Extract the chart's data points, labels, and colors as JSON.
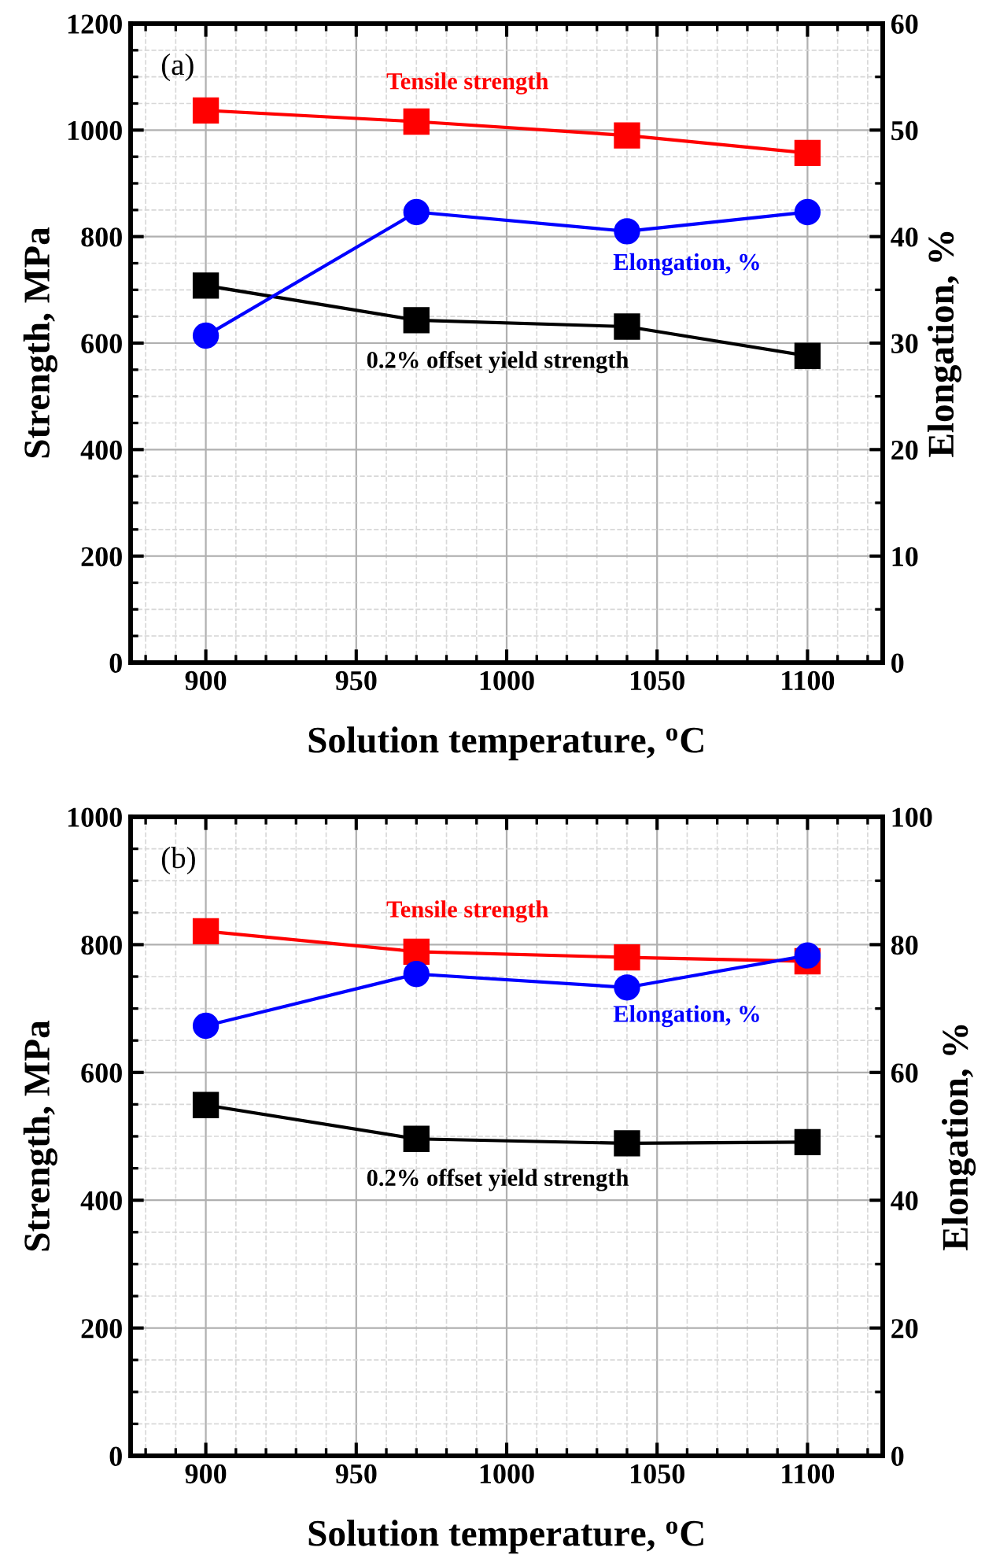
{
  "chart_data": [
    {
      "type": "line",
      "x": [
        900,
        970,
        1040,
        1100
      ],
      "xlabel": "Solution temperature, $^{o}$C",
      "ylabel": "Strength, MPa",
      "y2label": "Elongation, %",
      "annotations": [
        "(a)"
      ],
      "xlim": [
        875,
        1125
      ],
      "xticks": [
        900,
        950,
        1000,
        1050,
        1100
      ],
      "ylim": [
        0,
        1200
      ],
      "yticks": [
        0,
        200,
        400,
        600,
        800,
        1000,
        1200
      ],
      "y2lim": [
        0,
        60
      ],
      "y2ticks": [
        0,
        10,
        20,
        30,
        40,
        50,
        60
      ],
      "grid": true,
      "legend": false,
      "line_style": "solid",
      "series": [
        {
          "name": "Tensile strength",
          "color": "#ff0000",
          "marker": "square",
          "values": [
            1037,
            1016,
            990,
            957
          ]
        },
        {
          "name": "0.2% offset yield strength",
          "color": "#000000",
          "marker": "square",
          "values": [
            708,
            643,
            631,
            576
          ]
        },
        {
          "name": "Elongation, %",
          "color": "#0000ff",
          "marker": "circle",
          "axis": "y2",
          "values": [
            30.7,
            42.3,
            40.5,
            42.3
          ]
        }
      ]
    },
    {
      "type": "line",
      "x": [
        900,
        970,
        1040,
        1100
      ],
      "xlabel": "Solution temperature, $^{o}$C",
      "ylabel": "Strength, MPa",
      "y2label": "Elongation, %",
      "annotations": [
        "(b)"
      ],
      "xlim": [
        875,
        1125
      ],
      "xticks": [
        900,
        950,
        1000,
        1050,
        1100
      ],
      "ylim": [
        0,
        1000
      ],
      "yticks": [
        0,
        200,
        400,
        600,
        800,
        1000
      ],
      "y2lim": [
        0,
        100
      ],
      "y2ticks": [
        0,
        20,
        40,
        60,
        80,
        100
      ],
      "grid": true,
      "legend": false,
      "line_style": "solid",
      "series": [
        {
          "name": "Tensile strength",
          "color": "#ff0000",
          "marker": "square",
          "values": [
            821,
            789,
            780,
            774
          ]
        },
        {
          "name": "0.2% offset yield strength",
          "color": "#000000",
          "marker": "square",
          "values": [
            549,
            496,
            489,
            491
          ]
        },
        {
          "name": "Elongation, %",
          "color": "#0000ff",
          "marker": "circle",
          "axis": "y2",
          "values": [
            67.3,
            75.4,
            73.3,
            78.3
          ]
        }
      ]
    }
  ]
}
